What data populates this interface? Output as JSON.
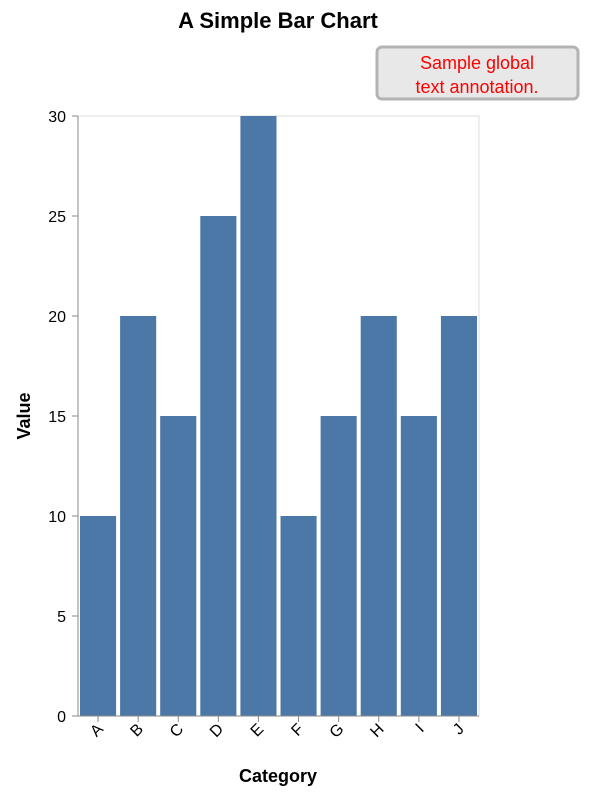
{
  "chart_data": {
    "type": "bar",
    "title": "A Simple Bar Chart",
    "xlabel": "Category",
    "ylabel": "Value",
    "categories": [
      "A",
      "B",
      "C",
      "D",
      "E",
      "F",
      "G",
      "H",
      "I",
      "J"
    ],
    "values": [
      10,
      20,
      15,
      25,
      30,
      10,
      15,
      20,
      15,
      20
    ],
    "ylim": [
      0,
      30
    ],
    "yticks": [
      0,
      5,
      10,
      15,
      20,
      25,
      30
    ],
    "grid": false,
    "bar_color": "#4c78a8",
    "annotation": {
      "lines": [
        "Sample global",
        "text annotation."
      ],
      "color": "#ff0000",
      "background": "#e8e8e8",
      "border": "#b3b3b3"
    }
  }
}
